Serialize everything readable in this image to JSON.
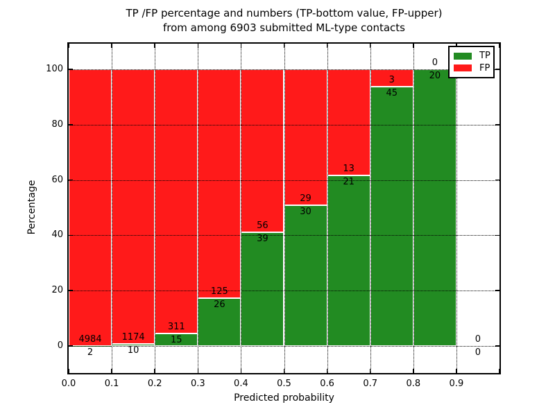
{
  "title": {
    "line1": "TP /FP percentage and numbers (TP-bottom value, FP-upper)",
    "line2": "from among 6903 submitted ML-type contacts"
  },
  "axes": {
    "xlabel": "Predicted probability",
    "ylabel": "Percentage"
  },
  "legend": {
    "position": "upper right",
    "items": [
      {
        "label": "TP",
        "color": "#228b22"
      },
      {
        "label": "FP",
        "color": "#ff1a1a"
      }
    ]
  },
  "chart_data": {
    "type": "bar",
    "stacked": true,
    "normalized_to_percent": true,
    "title": "TP /FP percentage and numbers (TP-bottom value, FP-upper) from among 6903 submitted ML-type contacts",
    "xlabel": "Predicted probability",
    "ylabel": "Percentage",
    "total_contacts": 6903,
    "bin_width": 0.1,
    "bin_starts": [
      0.0,
      0.1,
      0.2,
      0.3,
      0.4,
      0.5,
      0.6,
      0.7,
      0.8,
      0.9
    ],
    "series": [
      {
        "name": "TP",
        "color": "#228b22",
        "counts": [
          2,
          10,
          15,
          26,
          39,
          30,
          21,
          45,
          20,
          0
        ]
      },
      {
        "name": "FP",
        "color": "#ff1a1a",
        "counts": [
          4984,
          1174,
          311,
          125,
          56,
          29,
          13,
          3,
          0,
          0
        ]
      }
    ],
    "tp_percent_of_bin": [
      0.04,
      0.84,
      4.6,
      17.22,
      41.05,
      50.85,
      61.76,
      93.75,
      100.0,
      null
    ],
    "xticklabels": [
      "0.0",
      "0.1",
      "0.2",
      "0.3",
      "0.4",
      "0.5",
      "0.6",
      "0.7",
      "0.8",
      "0.9"
    ],
    "yticks": [
      0,
      20,
      40,
      60,
      80,
      100
    ],
    "xlim": [
      0.0,
      1.0
    ],
    "ylim": [
      -10,
      110
    ],
    "grid": "dotted black, drawn above bars",
    "bar_edge_color": "#ffffff",
    "legend_position": "upper right",
    "annotation_rule": "FP count placed just above TP/FP boundary, TP count just below"
  }
}
